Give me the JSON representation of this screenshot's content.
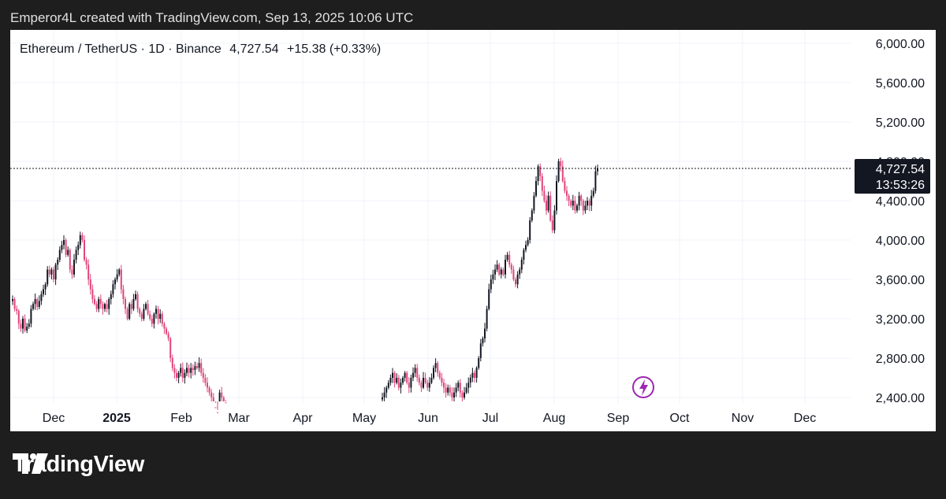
{
  "header": {
    "text": "Emperor4L created with TradingView.com, Sep 13, 2025 10:06 UTC"
  },
  "symbol": {
    "name": "Ethereum / TetherUS · 1D · Binance",
    "price": "4,727.54",
    "change": "+15.38 (+0.33%)"
  },
  "last_price": {
    "value": "4,727.54",
    "countdown": "13:53:26"
  },
  "footer": {
    "brand": "TradingView"
  },
  "colors": {
    "up": "#131722",
    "down": "#e0457b",
    "grid": "#f0f3fa",
    "lightning": "#9c27b0"
  },
  "chart_data": {
    "type": "candlestick",
    "title": "Ethereum / TetherUS · 1D · Binance",
    "y_ticks": [
      "2,400.00",
      "2,800.00",
      "3,200.00",
      "3,600.00",
      "4,000.00",
      "4,400.00",
      "4,800.00",
      "5,200.00",
      "5,600.00",
      "6,000.00"
    ],
    "x_ticks": [
      "Dec",
      "2025",
      "Feb",
      "Mar",
      "Apr",
      "May",
      "Jun",
      "Jul",
      "Aug",
      "Sep",
      "Oct",
      "Nov",
      "Dec"
    ],
    "ylim": [
      2400,
      6000
    ],
    "grid": true,
    "last_price": 4727.54,
    "series": [
      {
        "segment": "2024-11-18 to 2025-03-02",
        "closes": [
          3400,
          3300,
          3280,
          3150,
          3100,
          3200,
          3080,
          3120,
          3150,
          3300,
          3350,
          3400,
          3320,
          3380,
          3450,
          3500,
          3550,
          3700,
          3650,
          3700,
          3600,
          3750,
          3800,
          3900,
          3950,
          4000,
          3850,
          3900,
          3700,
          3650,
          3800,
          3900,
          3950,
          4050,
          4000,
          3800,
          3750,
          3600,
          3500,
          3400,
          3350,
          3300,
          3400,
          3350,
          3300,
          3350,
          3300,
          3400,
          3450,
          3550,
          3600,
          3650,
          3700,
          3500,
          3400,
          3300,
          3200,
          3350,
          3300,
          3400,
          3450,
          3300,
          3250,
          3200,
          3300,
          3350,
          3250,
          3200,
          3150,
          3250,
          3300,
          3200,
          3250,
          3150,
          3100,
          3050,
          3000,
          2800,
          2700,
          2650,
          2600,
          2650,
          2700,
          2600,
          2650,
          2700,
          2650,
          2700,
          2680,
          2720,
          2700,
          2750,
          2650,
          2600,
          2550,
          2500,
          2450,
          2400,
          2300,
          2250,
          2200,
          2450,
          2400,
          2350,
          2300
        ]
      },
      {
        "segment": "2025-05-09 to 2025-09-13",
        "closes": [
          2400,
          2450,
          2500,
          2550,
          2600,
          2650,
          2550,
          2600,
          2500,
          2550,
          2600,
          2650,
          2550,
          2500,
          2600,
          2650,
          2700,
          2600,
          2550,
          2500,
          2600,
          2550,
          2500,
          2550,
          2600,
          2700,
          2750,
          2650,
          2600,
          2550,
          2500,
          2450,
          2500,
          2450,
          2400,
          2450,
          2500,
          2550,
          2450,
          2400,
          2450,
          2500,
          2550,
          2600,
          2650,
          2600,
          2700,
          2800,
          2950,
          3000,
          3100,
          3300,
          3500,
          3600,
          3650,
          3700,
          3750,
          3650,
          3700,
          3650,
          3800,
          3850,
          3750,
          3700,
          3600,
          3550,
          3650,
          3700,
          3800,
          3900,
          3950,
          4000,
          4200,
          4300,
          4450,
          4600,
          4750,
          4650,
          4500,
          4400,
          4300,
          4450,
          4200,
          4100,
          4300,
          4600,
          4800,
          4750,
          4600,
          4500,
          4450,
          4400,
          4350,
          4400,
          4300,
          4350,
          4450,
          4400,
          4300,
          4350,
          4400,
          4350,
          4450,
          4500,
          4700,
          4727.54
        ]
      }
    ]
  }
}
